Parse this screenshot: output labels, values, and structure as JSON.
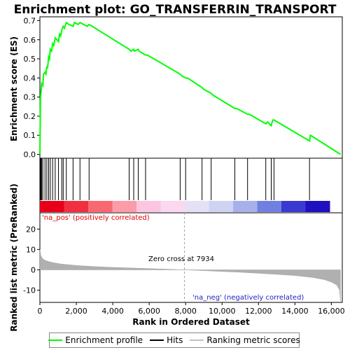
{
  "chart_data": {
    "type": "line",
    "title": "Enrichment plot: GO_TRANSFERRIN_TRANSPORT",
    "es_panel": {
      "ylabel": "Enrichment score (ES)",
      "ylim": [
        -0.02,
        0.72
      ],
      "yticks": [
        0.0,
        0.1,
        0.2,
        0.3,
        0.4,
        0.5,
        0.6,
        0.7
      ],
      "ytick_labels": [
        "0.0",
        "0.1",
        "0.2",
        "0.3",
        "0.4",
        "0.5",
        "0.6",
        "0.7"
      ],
      "series": [
        {
          "name": "Enrichment profile",
          "color": "#00ff00",
          "x": [
            0,
            30,
            60,
            100,
            160,
            200,
            280,
            330,
            380,
            420,
            480,
            530,
            570,
            640,
            700,
            760,
            840,
            940,
            1020,
            1080,
            1140,
            1200,
            1280,
            1350,
            1450,
            1600,
            1820,
            1900,
            2100,
            2200,
            2600,
            2700,
            4900,
            5000,
            5150,
            5200,
            5400,
            5450,
            5800,
            5900,
            7700,
            7800,
            8000,
            8100,
            8900,
            9000,
            9400,
            9500,
            10700,
            10800,
            11400,
            11500,
            12400,
            12500,
            12700,
            12750,
            12800,
            12850,
            14800,
            14850,
            16500
          ],
          "y": [
            0.0,
            0.29,
            0.33,
            0.37,
            0.36,
            0.42,
            0.43,
            0.42,
            0.46,
            0.45,
            0.51,
            0.5,
            0.55,
            0.54,
            0.58,
            0.57,
            0.61,
            0.6,
            0.59,
            0.63,
            0.62,
            0.65,
            0.67,
            0.66,
            0.69,
            0.68,
            0.67,
            0.69,
            0.68,
            0.69,
            0.67,
            0.68,
            0.55,
            0.54,
            0.55,
            0.54,
            0.55,
            0.54,
            0.52,
            0.52,
            0.42,
            0.41,
            0.4,
            0.4,
            0.35,
            0.34,
            0.32,
            0.31,
            0.24,
            0.24,
            0.21,
            0.21,
            0.16,
            0.17,
            0.15,
            0.17,
            0.18,
            0.18,
            0.07,
            0.1,
            0.0
          ]
        }
      ]
    },
    "hits_panel": {
      "hit_positions": [
        30,
        60,
        100,
        160,
        280,
        380,
        480,
        570,
        700,
        840,
        1020,
        1200,
        1280,
        1450,
        1820,
        2200,
        2700,
        4900,
        5150,
        5400,
        5800,
        7700,
        8000,
        8900,
        9400,
        10700,
        11400,
        12400,
        12700,
        12850,
        14800
      ]
    },
    "rank_panel": {
      "ylabel": "Ranked list metric (PreRanked)",
      "ylim": [
        -16,
        28
      ],
      "yticks": [
        -10,
        0,
        10,
        20
      ],
      "ytick_labels": [
        "-10",
        "0",
        "10",
        "20"
      ],
      "metric_x": [
        0,
        50,
        150,
        300,
        500,
        800,
        1200,
        2000,
        3000,
        4000,
        5000,
        6000,
        7000,
        7934,
        9000,
        10000,
        11000,
        12000,
        13000,
        14000,
        15000,
        15600,
        16000,
        16300,
        16450,
        16500
      ],
      "metric_y": [
        10,
        7,
        5.5,
        4.6,
        4.0,
        3.4,
        2.8,
        2.1,
        1.6,
        1.2,
        0.9,
        0.6,
        0.3,
        0.0,
        -0.4,
        -0.8,
        -1.2,
        -1.7,
        -2.2,
        -2.8,
        -3.8,
        -4.8,
        -6.0,
        -7.5,
        -10.0,
        -16.0
      ],
      "pos_label": "'na_pos' (positively correlated)",
      "neg_label": "'na_neg' (negatively correlated)",
      "zero_cross_label": "Zero cross at 7934",
      "zero_cross": 7934
    },
    "xaxis": {
      "label": "Rank in Dataset",
      "label_full": "Rank in Ordered Dataset",
      "xlim": [
        0,
        16600
      ],
      "xticks": [
        0,
        2000,
        4000,
        6000,
        8000,
        10000,
        12000,
        14000,
        16000
      ],
      "xtick_labels": [
        "0",
        "2,000",
        "4,000",
        "6,000",
        "8,000",
        "10,000",
        "12,000",
        "14,000",
        "16,000"
      ]
    },
    "heatmap_colors": [
      "#e8001a",
      "#f03040",
      "#f86870",
      "#fc9ca8",
      "#fdc6e0",
      "#fbd8f0",
      "#e6e0f6",
      "#cfd3f2",
      "#a8b0ec",
      "#7080e0",
      "#3a3ad0",
      "#2010c0"
    ],
    "legend": [
      {
        "label": "Enrichment profile",
        "color": "#00ff00"
      },
      {
        "label": "Hits",
        "color": "#000000"
      },
      {
        "label": "Ranking metric scores",
        "color": "#c0c0c0"
      }
    ],
    "colors": {
      "pos_text": "#e00000",
      "neg_text": "#2020c0",
      "metric_fill": "#b0b0b0"
    }
  }
}
